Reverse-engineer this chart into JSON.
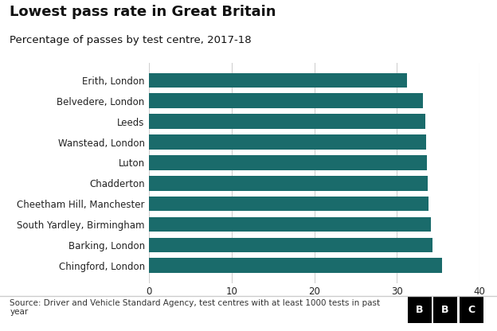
{
  "title": "Lowest pass rate in Great Britain",
  "subtitle": "Percentage of passes by test centre, 2017-18",
  "categories": [
    "Chingford, London",
    "Barking, London",
    "South Yardley, Birmingham",
    "Cheetham Hill, Manchester",
    "Chadderton",
    "Luton",
    "Wanstead, London",
    "Leeds",
    "Belvedere, London",
    "Erith, London"
  ],
  "values": [
    35.5,
    34.3,
    34.1,
    33.8,
    33.7,
    33.6,
    33.5,
    33.4,
    33.1,
    31.2
  ],
  "bar_color": "#1a6b6b",
  "xlim": [
    0,
    40
  ],
  "xticks": [
    0,
    10,
    20,
    30,
    40
  ],
  "source_text": "Source: Driver and Vehicle Standard Agency, test centres with at least 1000 tests in past\nyear",
  "background_color": "#ffffff",
  "fig_width": 6.24,
  "fig_height": 4.16,
  "title_fontsize": 13,
  "subtitle_fontsize": 9.5,
  "tick_fontsize": 8.5,
  "source_fontsize": 7.5
}
